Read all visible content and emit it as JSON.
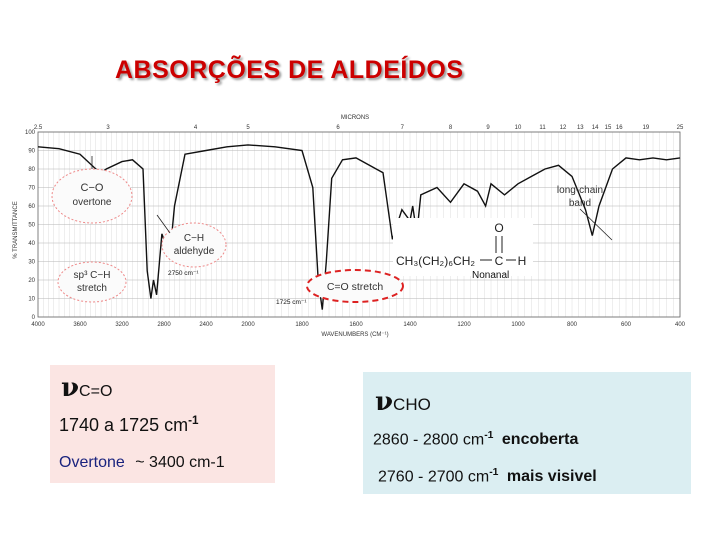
{
  "title": "ABSORÇÕES DE ALDEÍDOS",
  "chart_data": {
    "type": "line",
    "title": "",
    "xlabel": "WAVENUMBERS (CM⁻¹)",
    "ylabel": "% TRANSMITTANCE",
    "top_label": "MICRONS",
    "x_ticks": [
      4000,
      3600,
      3200,
      2800,
      2400,
      2000,
      1800,
      1600,
      1400,
      1200,
      1000,
      800,
      600,
      400
    ],
    "micron_ticks": [
      "2.5",
      "3",
      "4",
      "5",
      "6",
      "7",
      "8",
      "9",
      "10",
      "11",
      "12",
      "13",
      "14",
      "15",
      "16",
      "19",
      "25"
    ],
    "y_ticks": [
      0,
      10,
      20,
      30,
      40,
      50,
      60,
      70,
      80,
      90,
      100
    ],
    "ylim": [
      0,
      100
    ],
    "x": [
      4000,
      3800,
      3600,
      3450,
      3400,
      3350,
      3200,
      3100,
      3000,
      2960,
      2925,
      2900,
      2870,
      2855,
      2820,
      2760,
      2720,
      2700,
      2600,
      2400,
      2200,
      2000,
      1900,
      1800,
      1760,
      1740,
      1725,
      1710,
      1690,
      1650,
      1600,
      1500,
      1465,
      1430,
      1400,
      1390,
      1375,
      1360,
      1300,
      1250,
      1200,
      1150,
      1120,
      1100,
      1050,
      1000,
      950,
      900,
      850,
      800,
      750,
      725,
      700,
      650,
      600,
      550,
      500,
      450,
      400
    ],
    "y": [
      92,
      91,
      88,
      80,
      78,
      80,
      84,
      85,
      80,
      25,
      10,
      20,
      12,
      22,
      45,
      35,
      48,
      60,
      88,
      90,
      92,
      93,
      92,
      90,
      70,
      20,
      4,
      30,
      75,
      85,
      86,
      78,
      42,
      58,
      52,
      60,
      45,
      66,
      70,
      62,
      72,
      68,
      60,
      72,
      66,
      72,
      76,
      80,
      82,
      76,
      58,
      44,
      60,
      80,
      86,
      85,
      86,
      85,
      86
    ],
    "annotations": [
      {
        "text": "C−O overtone",
        "lines": [
          "C−O",
          "overtone"
        ]
      },
      {
        "text": "C−H aldehyde",
        "lines": [
          "C−H",
          "aldehyde"
        ]
      },
      {
        "text": "sp³ C−H stretch",
        "lines": [
          "sp³ C−H",
          "stretch"
        ]
      },
      {
        "text": "2750 cm⁻¹"
      },
      {
        "text": "C=O stretch"
      },
      {
        "text": "1725 cm⁻¹"
      },
      {
        "text": "long-chain band",
        "lines": [
          "long-chain",
          "band"
        ]
      },
      {
        "text": "Nonanal"
      }
    ],
    "structure_formula": "CH₃(CH₂)₆CH₂",
    "structure_atoms": [
      "O",
      "C",
      "H"
    ]
  },
  "boxes": {
    "left": {
      "heading": "CO",
      "heading_sub": "C=O",
      "range": "1740 a 1725 cm",
      "range_sup": "-1",
      "overtone_label": "Overtone",
      "overtone_value": "~ 3400 cm-1"
    },
    "right": {
      "heading_sub": "CHO",
      "line1": "2860 - 2800 cm",
      "line1_sup": "-1",
      "line1_note": "encoberta",
      "line2": "2760 - 2700 cm",
      "line2_sup": "-1",
      "line2_note": "mais visivel"
    }
  },
  "colors": {
    "title": "#cc0000",
    "trace": "#111111",
    "grid": "#bfbfbf",
    "callout_dash": "#dd2222"
  }
}
